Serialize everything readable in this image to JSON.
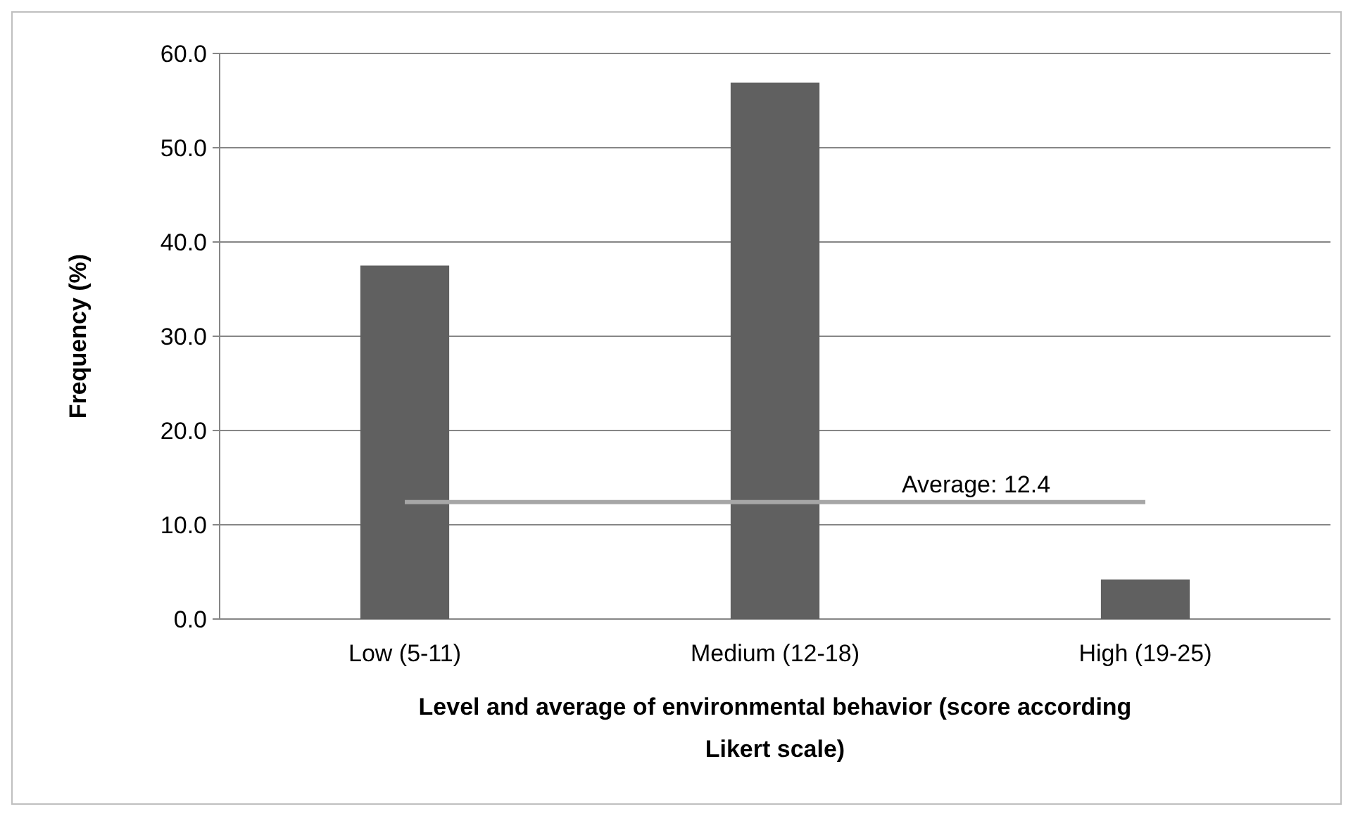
{
  "chart_data": {
    "type": "bar",
    "categories": [
      "Low (5-11)",
      "Medium (12-18)",
      "High (19-25)"
    ],
    "values": [
      37.5,
      56.9,
      4.2
    ],
    "color": "#606060",
    "ylabel": "Frequency (%)",
    "xlabel": "Level and average of environmental behavior (score according Likert scale)",
    "ylim": [
      0,
      60
    ],
    "yticks": [
      {
        "value": 0,
        "label": "0.0"
      },
      {
        "value": 10,
        "label": "10.0"
      },
      {
        "value": 20,
        "label": "20.0"
      },
      {
        "value": 30,
        "label": "30.0"
      },
      {
        "value": 40,
        "label": "40.0"
      },
      {
        "value": 50,
        "label": "50.0"
      },
      {
        "value": 60,
        "label": "60.0"
      }
    ],
    "grid": "y",
    "ref_lines": [
      {
        "axis": "y",
        "value": 12.4,
        "label": "Average: 12.4",
        "color": "#a6a6a6"
      }
    ]
  }
}
